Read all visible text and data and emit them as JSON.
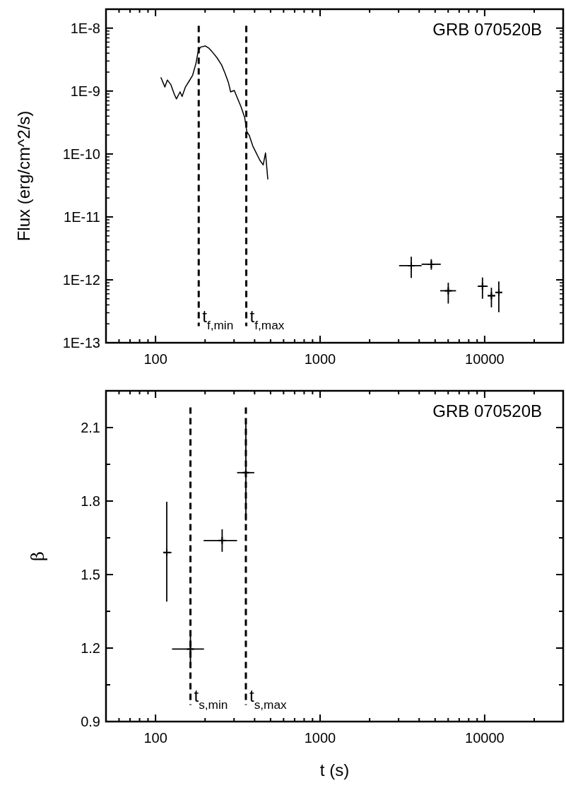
{
  "chart_data": [
    {
      "type": "scatter",
      "ylabel": "Flux (erg/cm^2/s)",
      "log": "xy",
      "xlim": [
        50,
        30000
      ],
      "xticks": [
        100,
        1000,
        10000
      ],
      "ylim": [
        1e-13,
        2e-08
      ],
      "yticks": [
        {
          "value": 1e-08,
          "label": "1E-8"
        },
        {
          "value": 1e-09,
          "label": "1E-9"
        },
        {
          "value": 1e-10,
          "label": "1E-10"
        },
        {
          "value": 1e-11,
          "label": "1E-11"
        },
        {
          "value": 1e-12,
          "label": "1E-12"
        },
        {
          "value": 1e-13,
          "label": "1E-13"
        }
      ],
      "grid": false,
      "annotations": [
        "GRB 070520B"
      ],
      "ref_lines": [
        {
          "axis": "x",
          "value": 183,
          "label": "t$_{f,min}$",
          "line_style": "dashed",
          "color": "#000000"
        },
        {
          "axis": "x",
          "value": 356,
          "label": "t$_{f,max}$",
          "line_style": "dashed",
          "color": "#000000"
        }
      ],
      "series": [
        {
          "type": "line",
          "color": "#000000",
          "line_style": "solid",
          "x": [
            108,
            114,
            118,
            124,
            130,
            134,
            141,
            145,
            152,
            160,
            168,
            176,
            182,
            188,
            201,
            211,
            221,
            236,
            252,
            264,
            277,
            286,
            301,
            316,
            331,
            348,
            359,
            371,
            390,
            409,
            430,
            451,
            466,
            481
          ],
          "values": [
            1.63e-09,
            1.16e-09,
            1.5e-09,
            1.26e-09,
            8.9e-10,
            7.5e-10,
            9.7e-10,
            8.2e-10,
            1.16e-09,
            1.44e-09,
            1.78e-09,
            2.74e-09,
            4.4e-09,
            5e-09,
            5.2e-09,
            4.8e-09,
            4.2e-09,
            3.4e-09,
            2.6e-09,
            1.94e-09,
            1.38e-09,
            9.7e-10,
            1.02e-09,
            7.5e-10,
            5.6e-10,
            3.8e-10,
            2.25e-10,
            1.98e-10,
            1.34e-10,
            1.04e-10,
            8e-11,
            6.7e-11,
            1.04e-10,
            4e-11
          ]
        },
        {
          "color": "#000000",
          "marker": "cross",
          "x": [
            3580,
            4740,
            6010,
            9700,
            10990,
            12190
          ],
          "values": [
            1.68e-12,
            1.77e-12,
            6.7e-13,
            7.9e-13,
            5.6e-13,
            6.3e-13
          ],
          "errors": [
            [
              1.07e-12,
              2.33e-12
            ],
            [
              1.45e-12,
              2.13e-12
            ],
            [
              4.2e-13,
              9e-13
            ],
            [
              5e-13,
              1.09e-12
            ],
            [
              3.65e-13,
              7.5e-13
            ],
            [
              3.06e-13,
              9.4e-13
            ]
          ],
          "xerrors": [
            [
              3020,
              4140
            ],
            [
              4140,
              5410
            ],
            [
              5370,
              6700
            ],
            [
              9070,
              10430
            ],
            [
              10430,
              11610
            ],
            [
              11700,
              12680
            ]
          ]
        }
      ]
    },
    {
      "type": "scatter",
      "xlabel": "t (s)",
      "ylabel": "β",
      "log": "x",
      "xlim": [
        50,
        30000
      ],
      "xticks": [
        100,
        1000,
        10000
      ],
      "ylim": [
        0.9,
        2.25
      ],
      "yticks": [
        0.9,
        {
          "value": 1.05,
          "label": null
        },
        1.2,
        {
          "value": 1.35,
          "label": null
        },
        1.5,
        {
          "value": 1.65,
          "label": null
        },
        1.8,
        {
          "value": 1.95,
          "label": null
        },
        2.1
      ],
      "grid": false,
      "annotations": [
        "GRB 070520B"
      ],
      "ref_lines": [
        {
          "axis": "x",
          "value": 163,
          "label": "t$_{s,min}$",
          "line_style": "dashed",
          "color": "#000000"
        },
        {
          "axis": "x",
          "value": 354,
          "label": "t$_{s,max}$",
          "line_style": "dashed",
          "color": "#000000"
        }
      ],
      "series": [
        {
          "color": "#000000",
          "marker": "cross",
          "x": [
            117,
            163,
            254,
            354
          ],
          "values": [
            1.59,
            1.196,
            1.639,
            1.916
          ],
          "errors": [
            [
              1.39,
              1.797
            ],
            [
              1.139,
              1.251
            ],
            [
              1.593,
              1.685
            ],
            [
              1.72,
              2.126
            ]
          ],
          "xerrors": [
            [
              112,
              125
            ],
            [
              126,
              197
            ],
            [
              196,
              313
            ],
            [
              313,
              398
            ]
          ]
        }
      ]
    }
  ]
}
